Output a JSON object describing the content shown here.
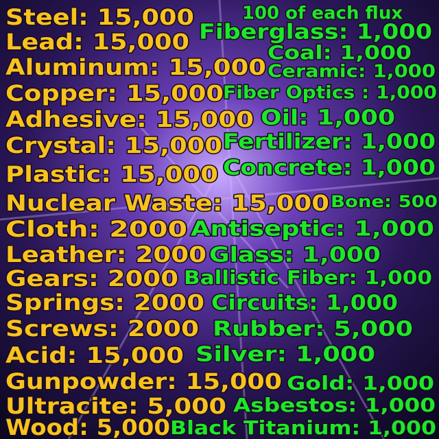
{
  "heading": "100 of each flux",
  "left_items": [
    "Steel: 15,000",
    "Lead: 15,000",
    "Aluminum: 15,000",
    "Copper: 15,000",
    "Adhesive: 15,000",
    "Crystal: 15,000",
    "Plastic: 15,000",
    "Nuclear Waste: 15,000",
    "Cloth: 2000",
    "Leather: 2000",
    "Gears: 2000",
    "Springs: 2000",
    "Screws: 2000",
    "Acid: 15,000",
    "Gunpowder: 15,000",
    "Ultracite: 5,000",
    "Wood: 5,000"
  ],
  "right_items": [
    "Fiberglass: 1,000",
    "Coal: 1,000",
    "Ceramic: 1,000",
    "Fiber Optics : 1,000",
    "Oil: 1,000",
    "Fertilizer: 1,000",
    "Concrete: 1,000",
    "Bone: 500",
    "Antiseptic: 1,000",
    "Glass: 1,000",
    "Ballistic Fiber: 1,000",
    "Circuits: 1,000",
    "Rubber: 5,000",
    "Silver: 1,000",
    "Gold: 1,000",
    "Asbestos: 1,000",
    "Black Titanium: 1,000"
  ]
}
